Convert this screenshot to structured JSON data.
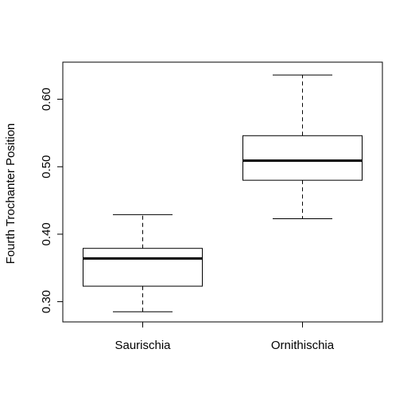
{
  "chart_data": {
    "type": "boxplot",
    "title": "",
    "xlabel": "",
    "ylabel": "Fourth Trochanter Position",
    "ylim": [
      0.27,
      0.655
    ],
    "yticks": [
      0.3,
      0.4,
      0.5,
      0.6
    ],
    "ytick_labels": [
      "0.30",
      "0.40",
      "0.50",
      "0.60"
    ],
    "grid": false,
    "legend": "none",
    "categories": [
      "Saurischia",
      "Ornithischia"
    ],
    "boxes": [
      {
        "category": "Saurischia",
        "whisker_low": 0.285,
        "q1": 0.323,
        "median": 0.364,
        "q3": 0.379,
        "whisker_high": 0.429
      },
      {
        "category": "Ornithischia",
        "whisker_low": 0.423,
        "q1": 0.48,
        "median": 0.509,
        "q3": 0.546,
        "whisker_high": 0.636
      }
    ]
  }
}
